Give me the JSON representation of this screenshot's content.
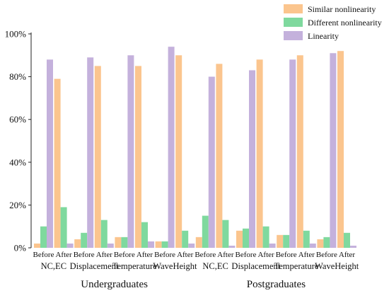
{
  "chart_data": {
    "type": "bar",
    "title": "",
    "xlabel": "",
    "ylabel": "",
    "ylim": [
      0,
      100
    ],
    "y_ticks": [
      "0%",
      "20%",
      "40%",
      "60%",
      "80%",
      "100%"
    ],
    "y_tick_values": [
      0,
      20,
      40,
      60,
      80,
      100
    ],
    "legend_position": "top-right",
    "groups": [
      "Undergraduates",
      "Postgraduates"
    ],
    "tasks": [
      "NC,EC",
      "Displacement",
      "Temperature",
      "WaveHeight"
    ],
    "phases": [
      "Before",
      "After"
    ],
    "categories": [
      "Undergraduates NC,EC Before",
      "Undergraduates NC,EC After",
      "Undergraduates Displacement Before",
      "Undergraduates Displacement After",
      "Undergraduates Temperature Before",
      "Undergraduates Temperature After",
      "Undergraduates WaveHeight Before",
      "Undergraduates WaveHeight After",
      "Postgraduates NC,EC Before",
      "Postgraduates NC,EC After",
      "Postgraduates Displacement Before",
      "Postgraduates Displacement After",
      "Postgraduates Temperature Before",
      "Postgraduates Temperature After",
      "Postgraduates WaveHeight Before",
      "Postgraduates WaveHeight After"
    ],
    "series": [
      {
        "name": "Similar nonlinearity",
        "color": "#fbc58e",
        "values": [
          2,
          79,
          4,
          85,
          5,
          85,
          3,
          90,
          5,
          86,
          8,
          88,
          6,
          90,
          4,
          92
        ]
      },
      {
        "name": "Different nonlinearity",
        "color": "#7fd99e",
        "values": [
          10,
          19,
          7,
          13,
          5,
          12,
          3,
          8,
          15,
          13,
          9,
          10,
          6,
          8,
          5,
          7
        ]
      },
      {
        "name": "Linearity",
        "color": "#c4b1dc",
        "values": [
          88,
          2,
          89,
          2,
          90,
          3,
          94,
          2,
          80,
          1,
          83,
          2,
          88,
          2,
          91,
          1
        ]
      }
    ]
  }
}
